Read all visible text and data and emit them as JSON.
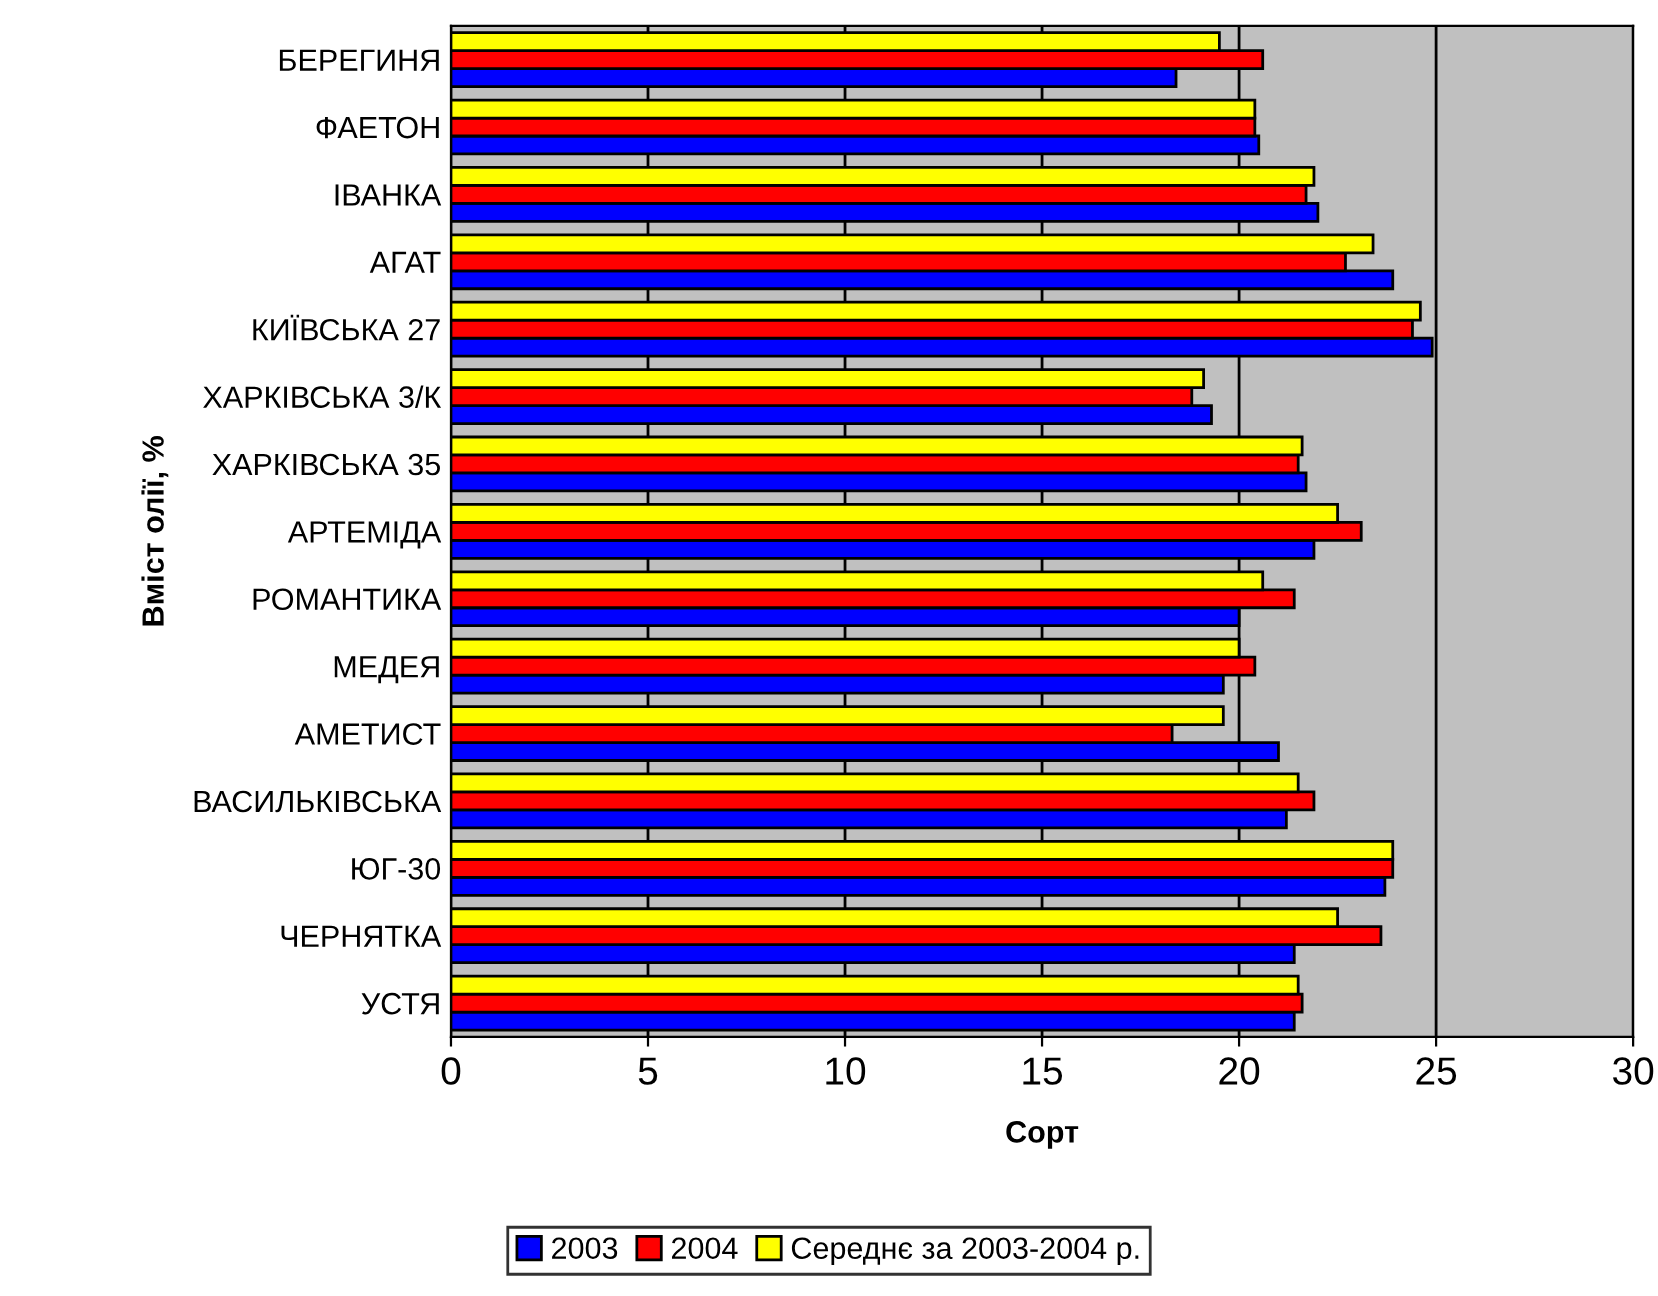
{
  "chart_data": {
    "type": "bar",
    "orientation": "horizontal",
    "xlabel": "Сорт",
    "ylabel": "Вміст олії, %",
    "categories": [
      "БЕРЕГИНЯ",
      "ФАЕТОН",
      "ІВАНКА",
      "АГАТ",
      "КИЇВСЬКА 27",
      "ХАРКІВСЬКА 3/К",
      "ХАРКІВСЬКА 35",
      "АРТЕМІДА",
      "РОМАНТИКА",
      "МЕДЕЯ",
      "АМЕТИСТ",
      "ВАСИЛЬКІВСЬКА",
      "ЮГ-30",
      "ЧЕРНЯТКА",
      "УСТЯ"
    ],
    "series": [
      {
        "name": "2003",
        "color": "#0000ff",
        "values": [
          18.4,
          20.5,
          22.0,
          23.9,
          24.9,
          19.3,
          21.7,
          21.9,
          20.0,
          19.6,
          21.0,
          21.2,
          23.7,
          21.4,
          21.4
        ]
      },
      {
        "name": "2004",
        "color": "#ff0000",
        "values": [
          20.6,
          20.4,
          21.7,
          22.7,
          24.4,
          18.8,
          21.5,
          23.1,
          21.4,
          20.4,
          18.3,
          21.9,
          23.9,
          23.6,
          21.6
        ]
      },
      {
        "name": "Середнє за 2003-2004 р.",
        "color": "#ffff00",
        "values": [
          19.5,
          20.4,
          21.9,
          23.4,
          24.6,
          19.1,
          21.6,
          22.5,
          20.6,
          20.0,
          19.6,
          21.5,
          23.9,
          22.5,
          21.5
        ]
      }
    ],
    "xlim": [
      0,
      30
    ],
    "xticks": [
      0,
      5,
      10,
      15,
      20,
      25,
      30
    ],
    "grid": "x",
    "legend": "bottom"
  }
}
